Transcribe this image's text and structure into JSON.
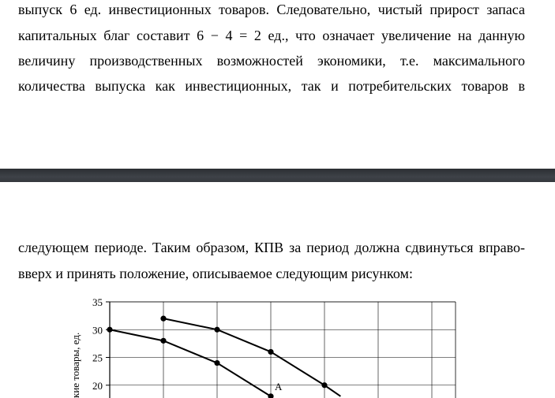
{
  "paragraph_top": [
    "выпуск 6 ед. инвестиционных товаров. Следовательно, чистый прирост запаса",
    "капитальных благ составит 6 − 4 = 2 ед., что означает увеличение на данную",
    "величину производственных возможностей экономики, т.е. максимального",
    "количества выпуска как инвестиционных, так и потребительских товаров в"
  ],
  "paragraph_bottom": [
    "следующем периоде. Таким образом, КПВ за период должна сдвинуться вправо-",
    "вверх и принять положение, описываемое следующим рисунком:"
  ],
  "chart_data": {
    "type": "line",
    "ylabel": "...кие товары, ед.",
    "ylabel_visible": "кие товары, ед.",
    "y_ticks": [
      20,
      25,
      30,
      35
    ],
    "ylim": [
      18,
      35
    ],
    "xlim": [
      0,
      7
    ],
    "grid": true,
    "series": [
      {
        "x": [
          0,
          1,
          2,
          3
        ],
        "y": [
          30,
          28,
          24,
          18
        ]
      },
      {
        "x": [
          1,
          2,
          3,
          4,
          4.3
        ],
        "y": [
          32,
          30,
          26,
          20,
          18
        ]
      }
    ],
    "annotations": [
      {
        "text": "A",
        "x": 3,
        "y": 18
      }
    ]
  }
}
